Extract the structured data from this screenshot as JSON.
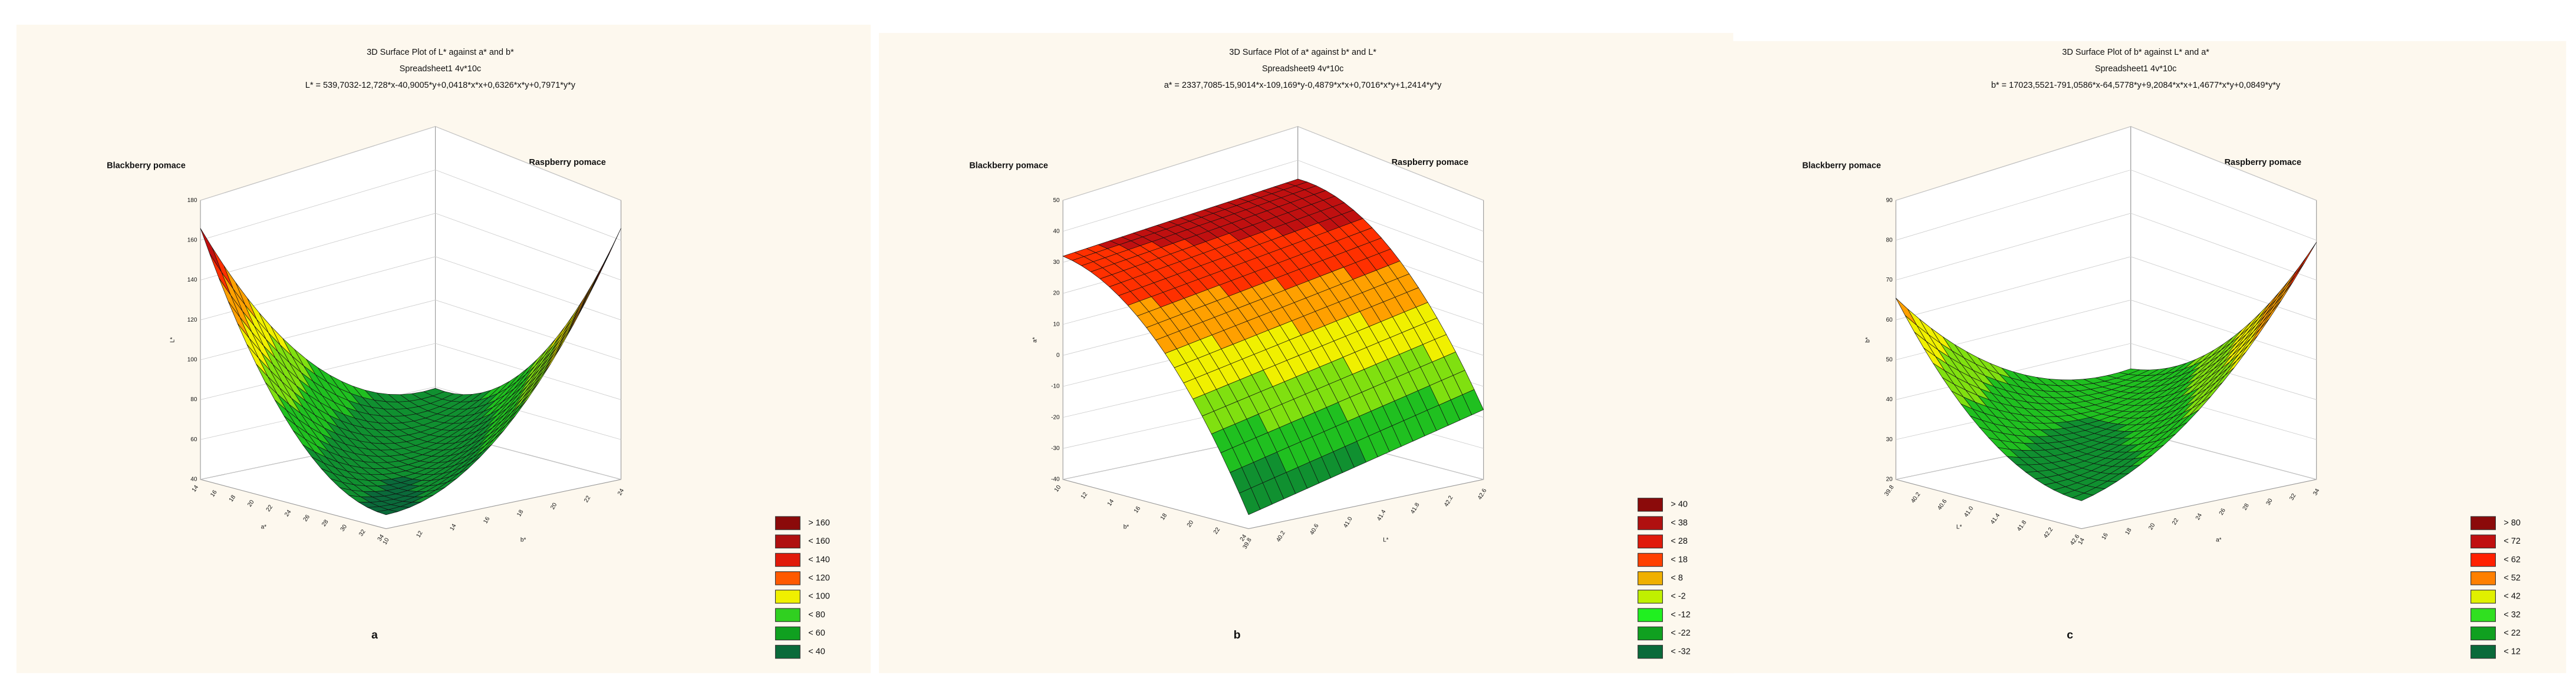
{
  "panels": [
    {
      "title": [
        "3D Surface Plot of L* against a* and b*",
        "Spreadsheet1 4v*10c",
        "L* = 539,7032-12,728*x-40,9005*y+0,0418*x*x+0,6326*x*y+0,7971*y*y"
      ],
      "corner_labels": [
        "Blackberry pomace",
        "Raspberry pomace"
      ],
      "z_label": "L*",
      "z_ticks": [
        "180",
        "160",
        "140",
        "120",
        "100",
        "80",
        "60",
        "40"
      ],
      "left_label": "a*",
      "left_ticks": [
        "14",
        "16",
        "18",
        "20",
        "22",
        "24",
        "26",
        "28",
        "30",
        "32",
        "34"
      ],
      "right_label": "b*",
      "right_ticks": [
        "10",
        "12",
        "14",
        "16",
        "18",
        "20",
        "22",
        "24"
      ],
      "legend": {
        "labels": [
          "> 160",
          "< 160",
          "< 140",
          "< 120",
          "< 100",
          "< 80",
          "< 60",
          "< 40"
        ],
        "colors": [
          "#8b0a0a",
          "#b01010",
          "#e01a0a",
          "#ff5a00",
          "#f0f000",
          "#30d020",
          "#10a020",
          "#0a6a3a"
        ]
      },
      "letter": "a"
    },
    {
      "title": [
        "3D Surface Plot of a* against b* and L*",
        "Spreadsheet9 4v*10c",
        "a* = 2337,7085-15,9014*x-109,169*y-0,4879*x*x+0,7016*x*y+1,2414*y*y"
      ],
      "corner_labels": [
        "Blackberry pomace",
        "Raspberry pomace"
      ],
      "z_label": "a*",
      "z_ticks": [
        "50",
        "40",
        "30",
        "20",
        "10",
        "0",
        "-10",
        "-20",
        "-30",
        "-40"
      ],
      "left_label": "b*",
      "left_ticks": [
        "10",
        "12",
        "14",
        "16",
        "18",
        "20",
        "22",
        "24"
      ],
      "right_label": "L*",
      "right_ticks": [
        "39.8",
        "40.2",
        "40.6",
        "41.0",
        "41.4",
        "41.8",
        "42.2",
        "42.6"
      ],
      "legend": {
        "labels": [
          "> 40",
          "< 38",
          "< 28",
          "< 18",
          "< 8",
          "< -2",
          "< -12",
          "< -22",
          "< -32"
        ],
        "colors": [
          "#8b0a0a",
          "#b01010",
          "#e01a0a",
          "#ff4000",
          "#f0b000",
          "#c0f000",
          "#20f020",
          "#10a020",
          "#0a6a3a"
        ]
      },
      "letter": "b"
    },
    {
      "title": [
        "3D Surface Plot of b* against L* and a*",
        "Spreadsheet1 4v*10c",
        "b* = 17023,5521-791,0586*x-64,5778*y+9,2084*x*x+1,4677*x*y+0,0849*y*y"
      ],
      "corner_labels": [
        "Blackberry pomace",
        "Raspberry pomace"
      ],
      "z_label": "b*",
      "z_ticks": [
        "90",
        "80",
        "70",
        "60",
        "50",
        "40",
        "30",
        "20"
      ],
      "left_label": "L*",
      "left_ticks": [
        "39.8",
        "40.2",
        "40.6",
        "41.0",
        "41.4",
        "41.8",
        "42.2",
        "42.6"
      ],
      "right_label": "a*",
      "right_ticks": [
        "14",
        "16",
        "18",
        "20",
        "22",
        "24",
        "26",
        "28",
        "30",
        "32",
        "34"
      ],
      "legend": {
        "labels": [
          "> 80",
          "< 72",
          "< 62",
          "< 52",
          "< 42",
          "< 32",
          "< 22",
          "< 12"
        ],
        "colors": [
          "#8b0a0a",
          "#c01010",
          "#ff2000",
          "#ff8000",
          "#e0f000",
          "#30e020",
          "#10a020",
          "#0a6a3a"
        ]
      },
      "letter": "c"
    }
  ]
}
